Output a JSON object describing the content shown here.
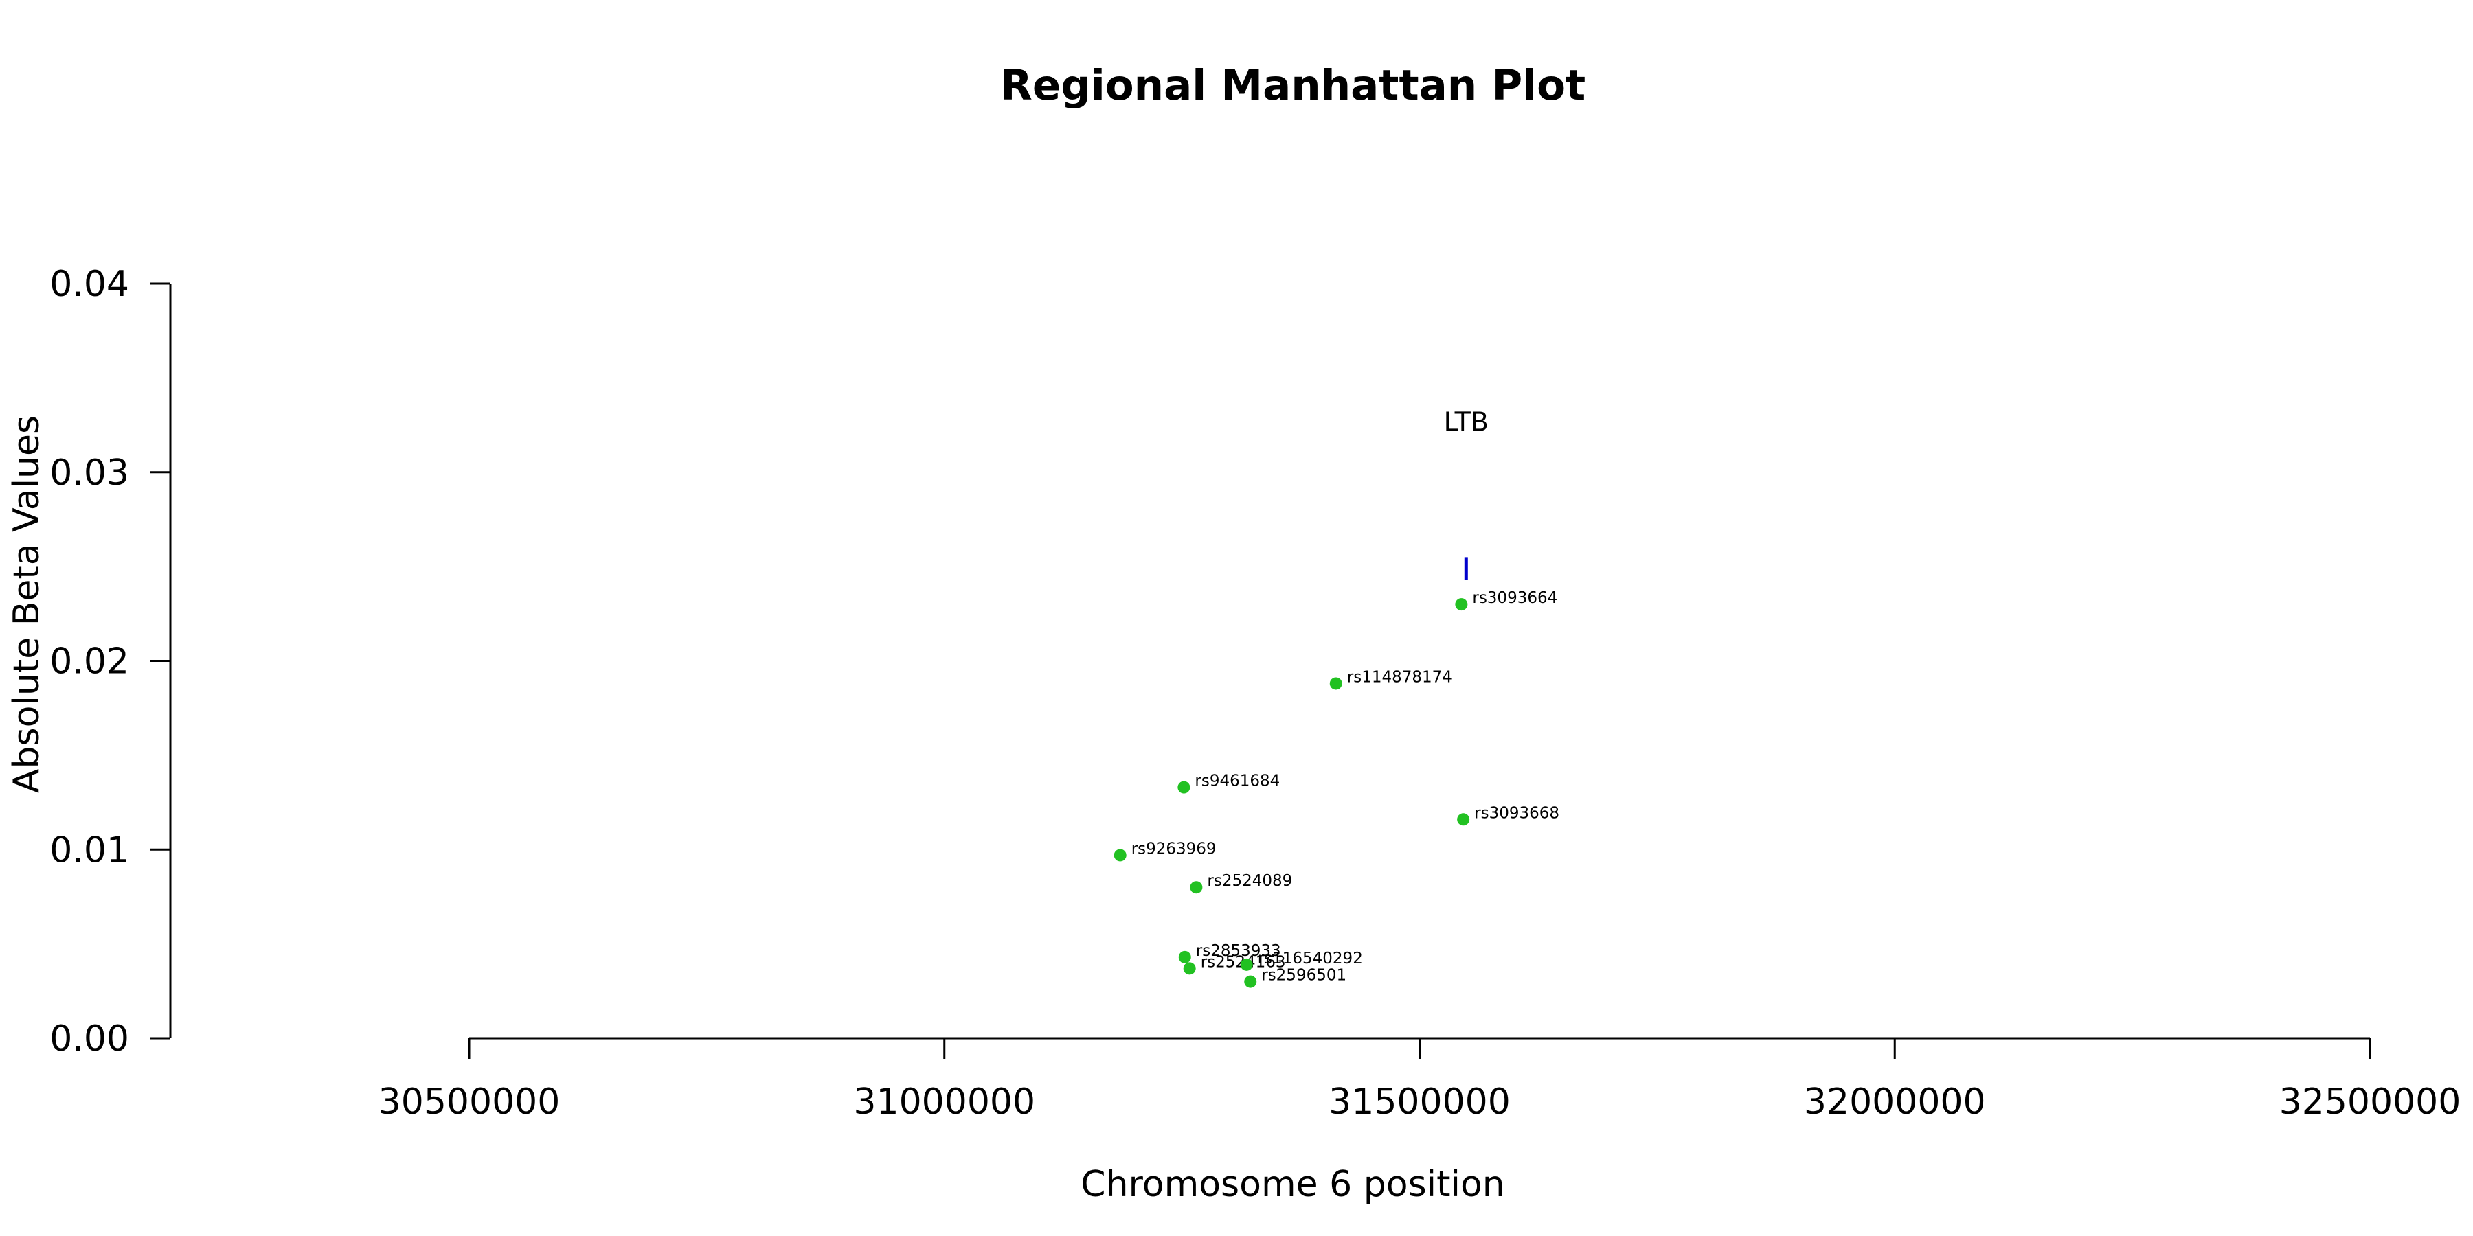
{
  "chart_data": {
    "type": "scatter",
    "title": "Regional Manhattan Plot",
    "xlabel": "Chromosome 6 position",
    "ylabel": "Absolute Beta Values",
    "xlim": [
      30500000,
      32500000
    ],
    "ylim": [
      0,
      0.04
    ],
    "x_ticks": [
      30500000,
      31000000,
      31500000,
      32000000,
      32500000
    ],
    "x_tick_labels": [
      "30500000",
      "31000000",
      "31500000",
      "32000000",
      "32500000"
    ],
    "y_ticks": [
      0,
      0.01,
      0.02,
      0.03,
      0.04
    ],
    "y_tick_labels": [
      "0.00",
      "0.01",
      "0.02",
      "0.03",
      "0.04"
    ],
    "grid": false,
    "point_color": "#22c122",
    "gene_color": "#0000cc",
    "series": [
      {
        "points": [
          {
            "snp": "rs3093664",
            "x": 31544000,
            "y": 0.023
          },
          {
            "snp": "rs114878174",
            "x": 31412000,
            "y": 0.0188
          },
          {
            "snp": "rs9461684",
            "x": 31252000,
            "y": 0.0133
          },
          {
            "snp": "rs3093668",
            "x": 31546000,
            "y": 0.0116
          },
          {
            "snp": "rs9263969",
            "x": 31185000,
            "y": 0.0097
          },
          {
            "snp": "rs2524089",
            "x": 31265000,
            "y": 0.008
          },
          {
            "snp": "rs2853933",
            "x": 31253000,
            "y": 0.0043
          },
          {
            "snp": "rs2524163",
            "x": 31258000,
            "y": 0.0037
          },
          {
            "snp": "rs116540292",
            "x": 31318000,
            "y": 0.0039
          },
          {
            "snp": "rs2596501",
            "x": 31322000,
            "y": 0.003
          }
        ]
      }
    ],
    "genes": [
      {
        "name": "LTB",
        "x": 31549000,
        "y_low": 0.0243,
        "y_high": 0.0255,
        "label_y": 0.0322
      }
    ]
  }
}
